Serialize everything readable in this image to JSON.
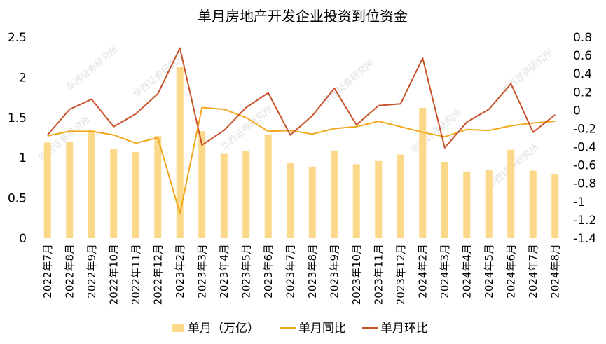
{
  "chart_data": {
    "type": "bar",
    "title": "单月房地产开发企业投资到位资金",
    "categories": [
      "2022年7月",
      "2022年8月",
      "2022年9月",
      "2022年10月",
      "2022年11月",
      "2022年12月",
      "2023年2月",
      "2023年3月",
      "2023年4月",
      "2023年5月",
      "2023年6月",
      "2023年7月",
      "2023年8月",
      "2023年9月",
      "2023年10月",
      "2023年11月",
      "2023年12月",
      "2024年2月",
      "2024年3月",
      "2024年4月",
      "2024年5月",
      "2024年6月",
      "2024年7月",
      "2024年8月"
    ],
    "series": [
      {
        "name": "单月（万亿）",
        "type": "bar",
        "axis": "left",
        "color": "#FCD98A",
        "values": [
          1.19,
          1.2,
          1.35,
          1.11,
          1.07,
          1.27,
          2.13,
          1.33,
          1.05,
          1.08,
          1.29,
          0.94,
          0.89,
          1.09,
          0.92,
          0.96,
          1.04,
          1.62,
          0.95,
          0.83,
          0.85,
          1.1,
          0.84,
          0.8
        ]
      },
      {
        "name": "单月同比",
        "type": "line",
        "axis": "right",
        "color": "#F1A71B",
        "values": [
          -0.28,
          -0.23,
          -0.23,
          -0.27,
          -0.36,
          -0.3,
          -1.13,
          0.03,
          0.01,
          -0.08,
          -0.23,
          -0.22,
          -0.26,
          -0.2,
          -0.18,
          -0.12,
          -0.18,
          -0.24,
          -0.29,
          -0.21,
          -0.22,
          -0.17,
          -0.14,
          -0.12
        ]
      },
      {
        "name": "单月环比",
        "type": "line",
        "axis": "right",
        "color": "#C8532A",
        "values": [
          -0.27,
          0.01,
          0.12,
          -0.18,
          -0.04,
          0.18,
          0.68,
          -0.38,
          -0.22,
          0.03,
          0.19,
          -0.27,
          -0.06,
          0.24,
          -0.16,
          0.05,
          0.07,
          0.57,
          -0.41,
          -0.13,
          0.01,
          0.29,
          -0.24,
          -0.05
        ]
      }
    ],
    "y_left": {
      "min": 0,
      "max": 2.5,
      "ticks": [
        "0",
        "0.5",
        "1",
        "1.5",
        "2",
        "2.5"
      ]
    },
    "y_right": {
      "min": -1.4,
      "max": 0.8,
      "ticks": [
        "-1.4",
        "-1.2",
        "-1",
        "-0.8",
        "-0.6",
        "-0.4",
        "-0.2",
        "0",
        "0.2",
        "0.4",
        "0.6",
        "0.8"
      ]
    },
    "grid": false,
    "legend": "bottom"
  },
  "watermark": "华西证券研究所"
}
